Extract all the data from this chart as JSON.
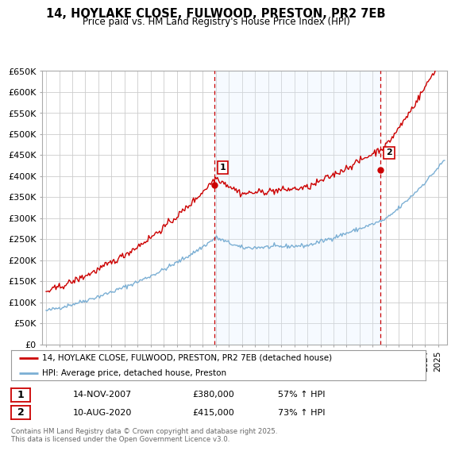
{
  "title_line1": "14, HOYLAKE CLOSE, FULWOOD, PRESTON, PR2 7EB",
  "title_line2": "Price paid vs. HM Land Registry's House Price Index (HPI)",
  "background_color": "#ffffff",
  "plot_bg_color": "#ffffff",
  "grid_color": "#cccccc",
  "red_line_color": "#cc0000",
  "blue_line_color": "#7bafd4",
  "vline_color": "#cc0000",
  "fill_color": "#ddeeff",
  "ylim": [
    0,
    650000
  ],
  "yticks": [
    0,
    50000,
    100000,
    150000,
    200000,
    250000,
    300000,
    350000,
    400000,
    450000,
    500000,
    550000,
    600000,
    650000
  ],
  "ytick_labels": [
    "£0",
    "£50K",
    "£100K",
    "£150K",
    "£200K",
    "£250K",
    "£300K",
    "£350K",
    "£400K",
    "£450K",
    "£500K",
    "£550K",
    "£600K",
    "£650K"
  ],
  "sale1_date": 2007.87,
  "sale1_price": 380000,
  "sale1_label": "1",
  "sale2_date": 2020.61,
  "sale2_price": 415000,
  "sale2_label": "2",
  "legend_red": "14, HOYLAKE CLOSE, FULWOOD, PRESTON, PR2 7EB (detached house)",
  "legend_blue": "HPI: Average price, detached house, Preston",
  "note1_label": "1",
  "note1_date": "14-NOV-2007",
  "note1_price": "£380,000",
  "note1_hpi": "57% ↑ HPI",
  "note2_label": "2",
  "note2_date": "10-AUG-2020",
  "note2_price": "£415,000",
  "note2_hpi": "73% ↑ HPI",
  "footer": "Contains HM Land Registry data © Crown copyright and database right 2025.\nThis data is licensed under the Open Government Licence v3.0."
}
